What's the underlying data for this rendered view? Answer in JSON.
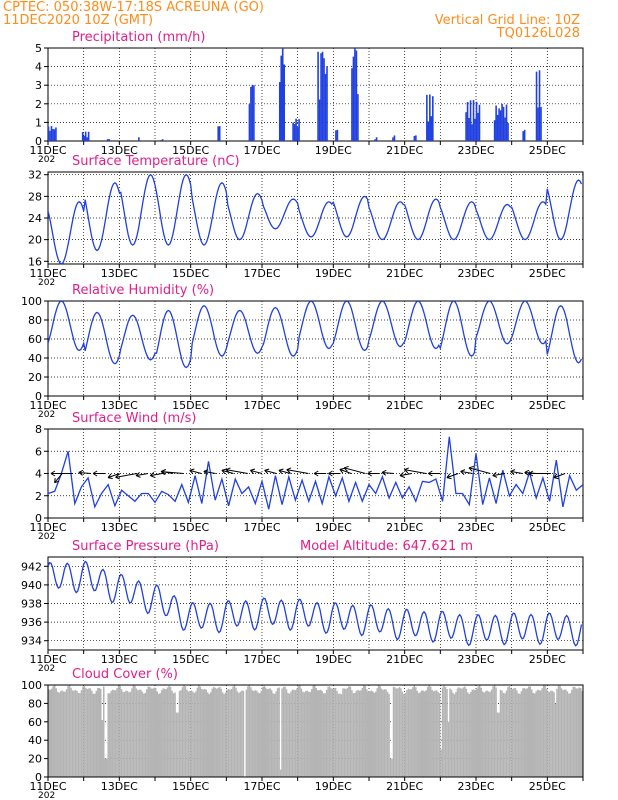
{
  "header": {
    "line1_left": "CPTEC:   050:38W-17:18S   ACREUNA (GO)",
    "line2_left": "11DEC2020 10Z (GMT)",
    "line2_right": "Vertical Grid Line: 10Z",
    "line3_right": "TQ0126L028"
  },
  "colors": {
    "header": "#ff8c1a",
    "title": "#e0208a",
    "series": "#2040e0",
    "cloud": "#b4b4b4",
    "grid": "#000000"
  },
  "x_tick_labels": [
    "11DEC",
    "13DEC",
    "15DEC",
    "17DEC",
    "19DEC",
    "21DEC",
    "23DEC",
    "25DEC"
  ],
  "year_fragment": "202",
  "chart_data": [
    {
      "type": "bar",
      "title": "Precipitation (mm/h)",
      "ylim": [
        0,
        5
      ],
      "yticks": [
        0,
        1,
        2,
        3,
        4,
        5
      ],
      "xlim_days": [
        11.0,
        26.0
      ],
      "grid": "dotted, vertical at 10Z each day",
      "events": [
        {
          "day": 11.1,
          "width": 0.3,
          "peak": 0.8
        },
        {
          "day": 12.05,
          "width": 0.2,
          "peak": 0.5
        },
        {
          "day": 12.7,
          "width": 0.1,
          "peak": 0.1
        },
        {
          "day": 13.55,
          "width": 0.05,
          "peak": 0.2
        },
        {
          "day": 14.2,
          "width": 0.1,
          "peak": 0.1
        },
        {
          "day": 15.8,
          "width": 0.1,
          "peak": 0.8
        },
        {
          "day": 16.7,
          "width": 0.15,
          "peak": 3.0
        },
        {
          "day": 17.55,
          "width": 0.15,
          "peak": 5.0
        },
        {
          "day": 17.95,
          "width": 0.2,
          "peak": 1.2
        },
        {
          "day": 18.7,
          "width": 0.3,
          "peak": 4.8
        },
        {
          "day": 19.1,
          "width": 0.1,
          "peak": 0.6
        },
        {
          "day": 19.6,
          "width": 0.2,
          "peak": 5.0
        },
        {
          "day": 20.2,
          "width": 0.1,
          "peak": 0.2
        },
        {
          "day": 20.7,
          "width": 0.1,
          "peak": 0.3
        },
        {
          "day": 21.3,
          "width": 0.1,
          "peak": 0.3
        },
        {
          "day": 21.7,
          "width": 0.2,
          "peak": 2.5
        },
        {
          "day": 22.9,
          "width": 0.4,
          "peak": 2.2
        },
        {
          "day": 23.7,
          "width": 0.4,
          "peak": 2.0
        },
        {
          "day": 24.35,
          "width": 0.1,
          "peak": 0.6
        },
        {
          "day": 24.75,
          "width": 0.15,
          "peak": 3.8
        }
      ]
    },
    {
      "type": "line",
      "title": "Surface Temperature (nC)",
      "ylim": [
        15.5,
        32.5
      ],
      "yticks": [
        16,
        20,
        24,
        28,
        32
      ],
      "xlim_days": [
        11.0,
        26.0
      ],
      "grid": "dotted",
      "daily_min": [
        15.5,
        18,
        19,
        19,
        19,
        20,
        22,
        20.5,
        20.5,
        20,
        20,
        20,
        20,
        20,
        20,
        21
      ],
      "daily_max": [
        27,
        30.5,
        32,
        32,
        30.5,
        28.5,
        27.5,
        27,
        28,
        27,
        27.5,
        27,
        26.5,
        27,
        31,
        28
      ]
    },
    {
      "type": "line",
      "title": "Relative Humidity (%)",
      "ylim": [
        0,
        100
      ],
      "yticks": [
        0,
        20,
        40,
        60,
        80,
        100
      ],
      "xlim_days": [
        11.0,
        26.0
      ],
      "grid": "dotted",
      "daily_max": [
        100,
        88,
        85,
        90,
        95,
        90,
        93,
        100,
        100,
        100,
        100,
        100,
        100,
        100,
        95,
        70
      ],
      "daily_min": [
        48,
        34,
        38,
        30,
        42,
        45,
        42,
        50,
        48,
        52,
        50,
        42,
        55,
        55,
        35,
        48
      ]
    },
    {
      "type": "line",
      "title": "Surface Wind (m/s)",
      "ylim": [
        0,
        8
      ],
      "yticks": [
        0,
        2,
        4,
        6,
        8
      ],
      "xlim_days": [
        11.0,
        26.0
      ],
      "grid": "dotted",
      "values": [
        2.2,
        2.4,
        4.0,
        6.0,
        1.3,
        2.8,
        3.6,
        1.0,
        2.2,
        3.0,
        1.1,
        2.5,
        2.0,
        1.5,
        2.2,
        2.2,
        1.4,
        2.4,
        2.1,
        1.5,
        3.0,
        1.4,
        3.8,
        1.3,
        5.1,
        1.6,
        3.5,
        1.1,
        3.5,
        2.2,
        2.8,
        1.3,
        3.3,
        0.8,
        3.8,
        1.2,
        3.7,
        1.6,
        3.4,
        1.5,
        3.3,
        1.3,
        3.7,
        2.0,
        3.6,
        1.5,
        3.2,
        1.5,
        3.0,
        2.2,
        3.7,
        1.8,
        3.2,
        1.8,
        2.8,
        1.5,
        3.3,
        3.2,
        3.5,
        1.5,
        7.3,
        2.2,
        2.2,
        1.2,
        5.8,
        1.2,
        3.6,
        1.3,
        4.3,
        2.0,
        3.0,
        2.2,
        4.1,
        1.8,
        3.6,
        1.5,
        5.2,
        1.0,
        3.8,
        2.5,
        3.0
      ],
      "arrows_day_dir": [
        [
          11.4,
          30
        ],
        [
          11.7,
          -20
        ],
        [
          12.2,
          -25
        ],
        [
          12.6,
          -20
        ],
        [
          13.0,
          0
        ],
        [
          13.5,
          -10
        ],
        [
          13.8,
          -10
        ],
        [
          14.2,
          -10
        ],
        [
          14.5,
          -30
        ],
        [
          14.8,
          -25
        ],
        [
          15.3,
          -35
        ],
        [
          15.7,
          -30
        ],
        [
          16.2,
          -35
        ],
        [
          16.6,
          -30
        ],
        [
          17.0,
          -35
        ],
        [
          17.4,
          -35
        ],
        [
          17.8,
          -35
        ],
        [
          18.3,
          -30
        ],
        [
          18.8,
          -20
        ],
        [
          19.2,
          -20
        ],
        [
          19.5,
          -40
        ],
        [
          19.9,
          -35
        ],
        [
          20.3,
          -20
        ],
        [
          20.7,
          -25
        ],
        [
          21.2,
          -10
        ],
        [
          21.6,
          -30
        ],
        [
          22.0,
          -20
        ],
        [
          22.5,
          0
        ],
        [
          22.9,
          -30
        ],
        [
          23.4,
          -35
        ],
        [
          23.8,
          -10
        ],
        [
          24.3,
          -30
        ],
        [
          24.7,
          -25
        ],
        [
          25.1,
          -20
        ],
        [
          25.5,
          0
        ]
      ]
    },
    {
      "type": "line",
      "title": "Surface Pressure (hPa)",
      "ylim": [
        933,
        943
      ],
      "yticks": [
        934,
        936,
        938,
        940,
        942
      ],
      "xlim_days": [
        11.0,
        26.0
      ],
      "grid": "dotted",
      "daily_mean": [
        940.8,
        941.0,
        939.6,
        938.5,
        936.5,
        936.7,
        937.0,
        936.9,
        936.5,
        936.3,
        935.8,
        935.6,
        935.2,
        935.4,
        935.4,
        935.2
      ],
      "semidiurnal_amplitude": 1.5
    },
    {
      "type": "bar",
      "title": "Cloud Cover (%)",
      "ylim": [
        0,
        100
      ],
      "yticks": [
        0,
        20,
        40,
        60,
        80,
        100
      ],
      "xlim_days": [
        11.0,
        26.0
      ],
      "grid": "dotted",
      "baseline": 95,
      "dips": [
        [
          12.5,
          62
        ],
        [
          12.6,
          20
        ],
        [
          14.6,
          70
        ],
        [
          16.5,
          0
        ],
        [
          17.5,
          8
        ],
        [
          19.2,
          90
        ],
        [
          19.6,
          98
        ],
        [
          20.6,
          20
        ],
        [
          20.6,
          40
        ],
        [
          22.0,
          30
        ],
        [
          22.2,
          60
        ],
        [
          23.6,
          70
        ],
        [
          25.2,
          80
        ]
      ]
    }
  ],
  "panel_titles": [
    "Precipitation (mm/h)",
    "Surface Temperature (nC)",
    "Relative Humidity (%)",
    "Surface Wind (m/s)",
    "Surface Pressure (hPa)",
    "Cloud Cover (%)"
  ],
  "model_altitude": "Model Altitude: 647.621 m"
}
